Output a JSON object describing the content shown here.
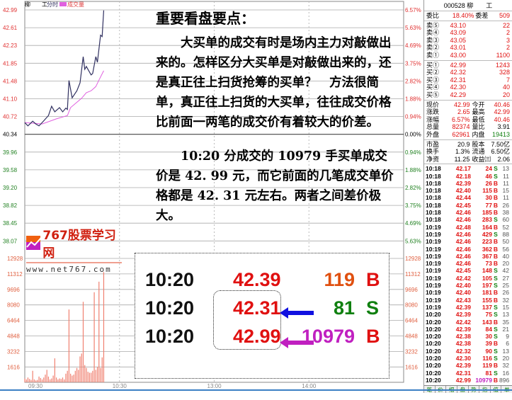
{
  "header": {
    "stock_name": "柳　　工",
    "tab_minute": "分时",
    "legend_volume": "成交量",
    "code_title": "000528 柳　　工"
  },
  "colors": {
    "up": "#e01010",
    "down": "#108010",
    "price_line": "#303060",
    "avg_line": "#e060e0",
    "volume": "#f08070",
    "accent": "#3b7fc4"
  },
  "chart_data": {
    "type": "line",
    "price_axis_left": [
      "42.99",
      "42.61",
      "42.23",
      "41.85",
      "41.48",
      "41.10",
      "40.72",
      "40.34",
      "39.96",
      "39.58",
      "39.20",
      "38.82",
      "38.45",
      "38.07"
    ],
    "pct_axis_right": [
      "6.57%",
      "5.63%",
      "4.69%",
      "3.75%",
      "2.82%",
      "1.88%",
      "0.94%",
      "0.00%",
      "0.94%",
      "1.88%",
      "2.82%",
      "3.75%",
      "4.69%",
      "5.63%"
    ],
    "volume_axis": [
      "12928",
      "11312",
      "9696",
      "8080",
      "6464",
      "4848",
      "3232",
      "1616"
    ],
    "time_ticks": [
      "09:30",
      "10:30",
      "13:00",
      "14:00"
    ],
    "ylim": [
      38.07,
      42.99
    ],
    "volume_max": 12928,
    "prev_close": 40.34,
    "price": [
      [
        "09:30",
        40.58
      ],
      [
        "09:32",
        40.51
      ],
      [
        "09:35",
        40.61
      ],
      [
        "09:37",
        40.55
      ],
      [
        "09:39",
        40.51
      ],
      [
        "09:41",
        40.58
      ],
      [
        "09:45",
        40.73
      ],
      [
        "09:47",
        40.93
      ],
      [
        "09:49",
        40.81
      ],
      [
        "09:52",
        40.9
      ],
      [
        "09:54",
        40.81
      ],
      [
        "09:56",
        40.89
      ],
      [
        "09:57",
        40.86
      ],
      [
        "09:58",
        41.48
      ],
      [
        "10:00",
        41.11
      ],
      [
        "10:03",
        41.26
      ],
      [
        "10:05",
        41.43
      ],
      [
        "10:07",
        41.99
      ],
      [
        "10:08",
        41.72
      ],
      [
        "10:09",
        41.78
      ],
      [
        "10:12",
        41.6
      ],
      [
        "10:13",
        41.63
      ],
      [
        "10:15",
        41.99
      ],
      [
        "10:16",
        41.87
      ],
      [
        "10:18",
        42.45
      ],
      [
        "10:19",
        42.42
      ],
      [
        "10:20",
        42.98
      ]
    ],
    "avg": [
      [
        "09:30",
        40.58
      ],
      [
        "09:41",
        40.55
      ],
      [
        "09:50",
        40.66
      ],
      [
        "09:57",
        40.73
      ],
      [
        "09:59",
        40.9
      ],
      [
        "10:06",
        41.1
      ],
      [
        "10:09",
        41.22
      ],
      [
        "10:12",
        41.26
      ],
      [
        "10:15",
        41.35
      ],
      [
        "10:17",
        41.49
      ],
      [
        "10:20",
        41.69
      ]
    ],
    "volume": [
      [
        "09:30",
        400
      ],
      [
        "09:31",
        300
      ],
      [
        "09:32",
        500
      ],
      [
        "09:33",
        350
      ],
      [
        "09:34",
        250
      ],
      [
        "09:35",
        1200
      ],
      [
        "09:36",
        300
      ],
      [
        "09:37",
        200
      ],
      [
        "09:38",
        250
      ],
      [
        "09:39",
        600
      ],
      [
        "09:40",
        450
      ],
      [
        "09:41",
        300
      ],
      [
        "09:42",
        500
      ],
      [
        "09:43",
        800
      ],
      [
        "09:44",
        1300
      ],
      [
        "09:45",
        600
      ],
      [
        "09:46",
        300
      ],
      [
        "09:47",
        400
      ],
      [
        "09:48",
        700
      ],
      [
        "09:49",
        2500
      ],
      [
        "09:50",
        500
      ],
      [
        "09:51",
        300
      ],
      [
        "09:52",
        400
      ],
      [
        "09:53",
        350
      ],
      [
        "09:54",
        500
      ],
      [
        "09:55",
        300
      ],
      [
        "09:56",
        900
      ],
      [
        "09:57",
        1200
      ],
      [
        "09:58",
        7600
      ],
      [
        "09:59",
        900
      ],
      [
        "10:00",
        700
      ],
      [
        "10:01",
        800
      ],
      [
        "10:02",
        1200
      ],
      [
        "10:03",
        1500
      ],
      [
        "10:04",
        1300
      ],
      [
        "10:05",
        2700
      ],
      [
        "10:06",
        3000
      ],
      [
        "10:07",
        8400
      ],
      [
        "10:08",
        1800
      ],
      [
        "10:09",
        1500
      ],
      [
        "10:10",
        1100
      ],
      [
        "10:11",
        1000
      ],
      [
        "10:12",
        1000
      ],
      [
        "10:13",
        1200
      ],
      [
        "10:14",
        9400
      ],
      [
        "10:15",
        1300
      ],
      [
        "10:16",
        1600
      ],
      [
        "10:17",
        10500
      ],
      [
        "10:18",
        1500
      ],
      [
        "10:19",
        2600
      ],
      [
        "10:20",
        11500
      ]
    ]
  },
  "text": {
    "title": "重要看盘要点：",
    "para1": "　　大买单的成交有时是场内主力对敲做出来的。怎样区分大买单是对敲做出来的，还是真正往上扫货抢筹的买单？　方法很简单，真正往上扫货的大买单，往往成交价格比前面一两笔的成交价有着较大的价差。",
    "para2": "　　10:20 分成交的 10979 手买单成交价是 42. 99 元，而它前面的几笔成交单价格都是 42. 31 元左右。两者之间差价极大。"
  },
  "zoom_box": [
    {
      "time": "10:20",
      "price": "42.39",
      "vol": "119",
      "side": "B"
    },
    {
      "time": "10:20",
      "price": "42.31",
      "vol": "81",
      "side": "S"
    },
    {
      "time": "10:20",
      "price": "42.99",
      "vol": "10979",
      "side": "B"
    }
  ],
  "logo": {
    "name": "767股票学习网",
    "url": "www.net767.com"
  },
  "book": {
    "ratio_label": "委比",
    "ratio": "18.40%",
    "diff_label": "委差",
    "diff": "509",
    "sells": [
      [
        "卖⑤",
        "43.10",
        "22"
      ],
      [
        "卖④",
        "43.09",
        "2"
      ],
      [
        "卖③",
        "43.05",
        "3"
      ],
      [
        "卖②",
        "43.01",
        "2"
      ],
      [
        "卖①",
        "43.00",
        "1100"
      ]
    ],
    "buys": [
      [
        "买①",
        "42.99",
        "1243"
      ],
      [
        "买②",
        "42.32",
        "328"
      ],
      [
        "买③",
        "42.31",
        "7"
      ],
      [
        "买④",
        "42.30",
        "40"
      ],
      [
        "买⑤",
        "42.29",
        "20"
      ]
    ],
    "quote": [
      [
        "现价",
        "42.99",
        "今开",
        "40.46"
      ],
      [
        "涨跌",
        "2.65",
        "最高",
        "42.99"
      ],
      [
        "涨幅",
        "6.57%",
        "最低",
        "40.46"
      ],
      [
        "总量",
        "82374",
        "量比",
        "3.91"
      ],
      [
        "外盘",
        "62961",
        "内盘",
        "19413"
      ]
    ],
    "fund": [
      [
        "市盈",
        "20.9",
        "股本",
        "7.50亿"
      ],
      [
        "换手",
        "1.3%",
        "流通",
        "6.50亿"
      ],
      [
        "净资",
        "11.25",
        "收益㈢",
        "2.06"
      ]
    ]
  },
  "trades": [
    [
      "10:18",
      "42.17",
      "24",
      "S",
      "13"
    ],
    [
      "10:18",
      "42.18",
      "46",
      "S",
      "11"
    ],
    [
      "10:18",
      "42.39",
      "26",
      "B",
      "11"
    ],
    [
      "10:18",
      "42.40",
      "115",
      "B",
      "15"
    ],
    [
      "10:18",
      "42.44",
      "30",
      "B",
      "11"
    ],
    [
      "10:18",
      "42.45",
      "77",
      "B",
      "26"
    ],
    [
      "10:18",
      "42.46",
      "185",
      "B",
      "38"
    ],
    [
      "10:18",
      "42.46",
      "283",
      "S",
      "60"
    ],
    [
      "10:19",
      "42.48",
      "164",
      "B",
      "52"
    ],
    [
      "10:19",
      "42.46",
      "429",
      "S",
      "88"
    ],
    [
      "10:19",
      "42.46",
      "223",
      "B",
      "50"
    ],
    [
      "10:19",
      "42.46",
      "362",
      "B",
      "56"
    ],
    [
      "10:19",
      "42.46",
      "367",
      "B",
      "40"
    ],
    [
      "10:19",
      "42.46",
      "73",
      "B",
      "20"
    ],
    [
      "10:19",
      "42.45",
      "148",
      "S",
      "42"
    ],
    [
      "10:19",
      "42.42",
      "105",
      "S",
      "27"
    ],
    [
      "10:19",
      "42.40",
      "197",
      "S",
      "25"
    ],
    [
      "10:19",
      "42.40",
      "181",
      "B",
      "26"
    ],
    [
      "10:19",
      "42.43",
      "155",
      "B",
      "32"
    ],
    [
      "10:19",
      "42.39",
      "137",
      "S",
      "15"
    ],
    [
      "10:20",
      "42.39",
      "75",
      "S",
      "13"
    ],
    [
      "10:20",
      "42.42",
      "143",
      "B",
      "35"
    ],
    [
      "10:20",
      "42.39",
      "84",
      "S",
      "21"
    ],
    [
      "10:20",
      "42.38",
      "30",
      "S",
      "9"
    ],
    [
      "10:20",
      "42.38",
      "39",
      "B",
      "6"
    ],
    [
      "10:20",
      "42.32",
      "90",
      "S",
      "13"
    ],
    [
      "10:20",
      "42.30",
      "116",
      "S",
      "20"
    ],
    [
      "10:20",
      "42.39",
      "119",
      "B",
      "32"
    ],
    [
      "10:20",
      "42.31",
      "81",
      "S",
      "16"
    ],
    [
      "10:20",
      "42.99",
      "10979",
      "B",
      "896"
    ]
  ],
  "tabs": [
    "笔",
    "价",
    "细",
    "盘",
    "势",
    "指",
    "值",
    "单"
  ]
}
